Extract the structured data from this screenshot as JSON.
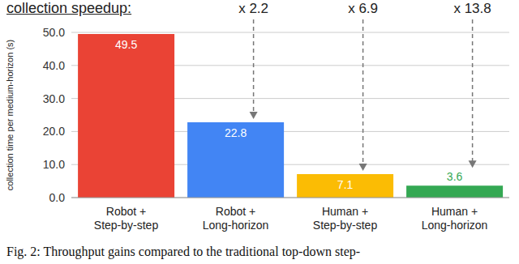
{
  "chart_data": {
    "type": "bar",
    "title": "collection speedup:",
    "categories": [
      "Robot + Step-by-step",
      "Robot + Long-horizon",
      "Human + Step-by-step",
      "Human + Long-horizon"
    ],
    "values": [
      49.5,
      22.8,
      7.1,
      3.6
    ],
    "colors": [
      "#ea4335",
      "#4285f4",
      "#fbbc04",
      "#34a853"
    ],
    "ylabel": "collection time per medium-horizon (s)",
    "ylim": [
      0,
      50
    ],
    "yticks": [
      {
        "value": 0,
        "label": "0.0"
      },
      {
        "value": 10,
        "label": "10.0"
      },
      {
        "value": 20,
        "label": "20.0"
      },
      {
        "value": 30,
        "label": "30.0"
      },
      {
        "value": 40,
        "label": "40.0"
      },
      {
        "value": 50,
        "label": "50.0"
      }
    ],
    "grid": true,
    "data_labels": true,
    "annotations": [
      {
        "category": "Robot + Long-horizon",
        "text": "x 2.2"
      },
      {
        "category": "Human + Step-by-step",
        "text": "x 6.9"
      },
      {
        "category": "Human + Long-horizon",
        "text": "x 13.8"
      }
    ],
    "caption": "Fig. 2: Throughput gains compared to the traditional top-down step-"
  }
}
